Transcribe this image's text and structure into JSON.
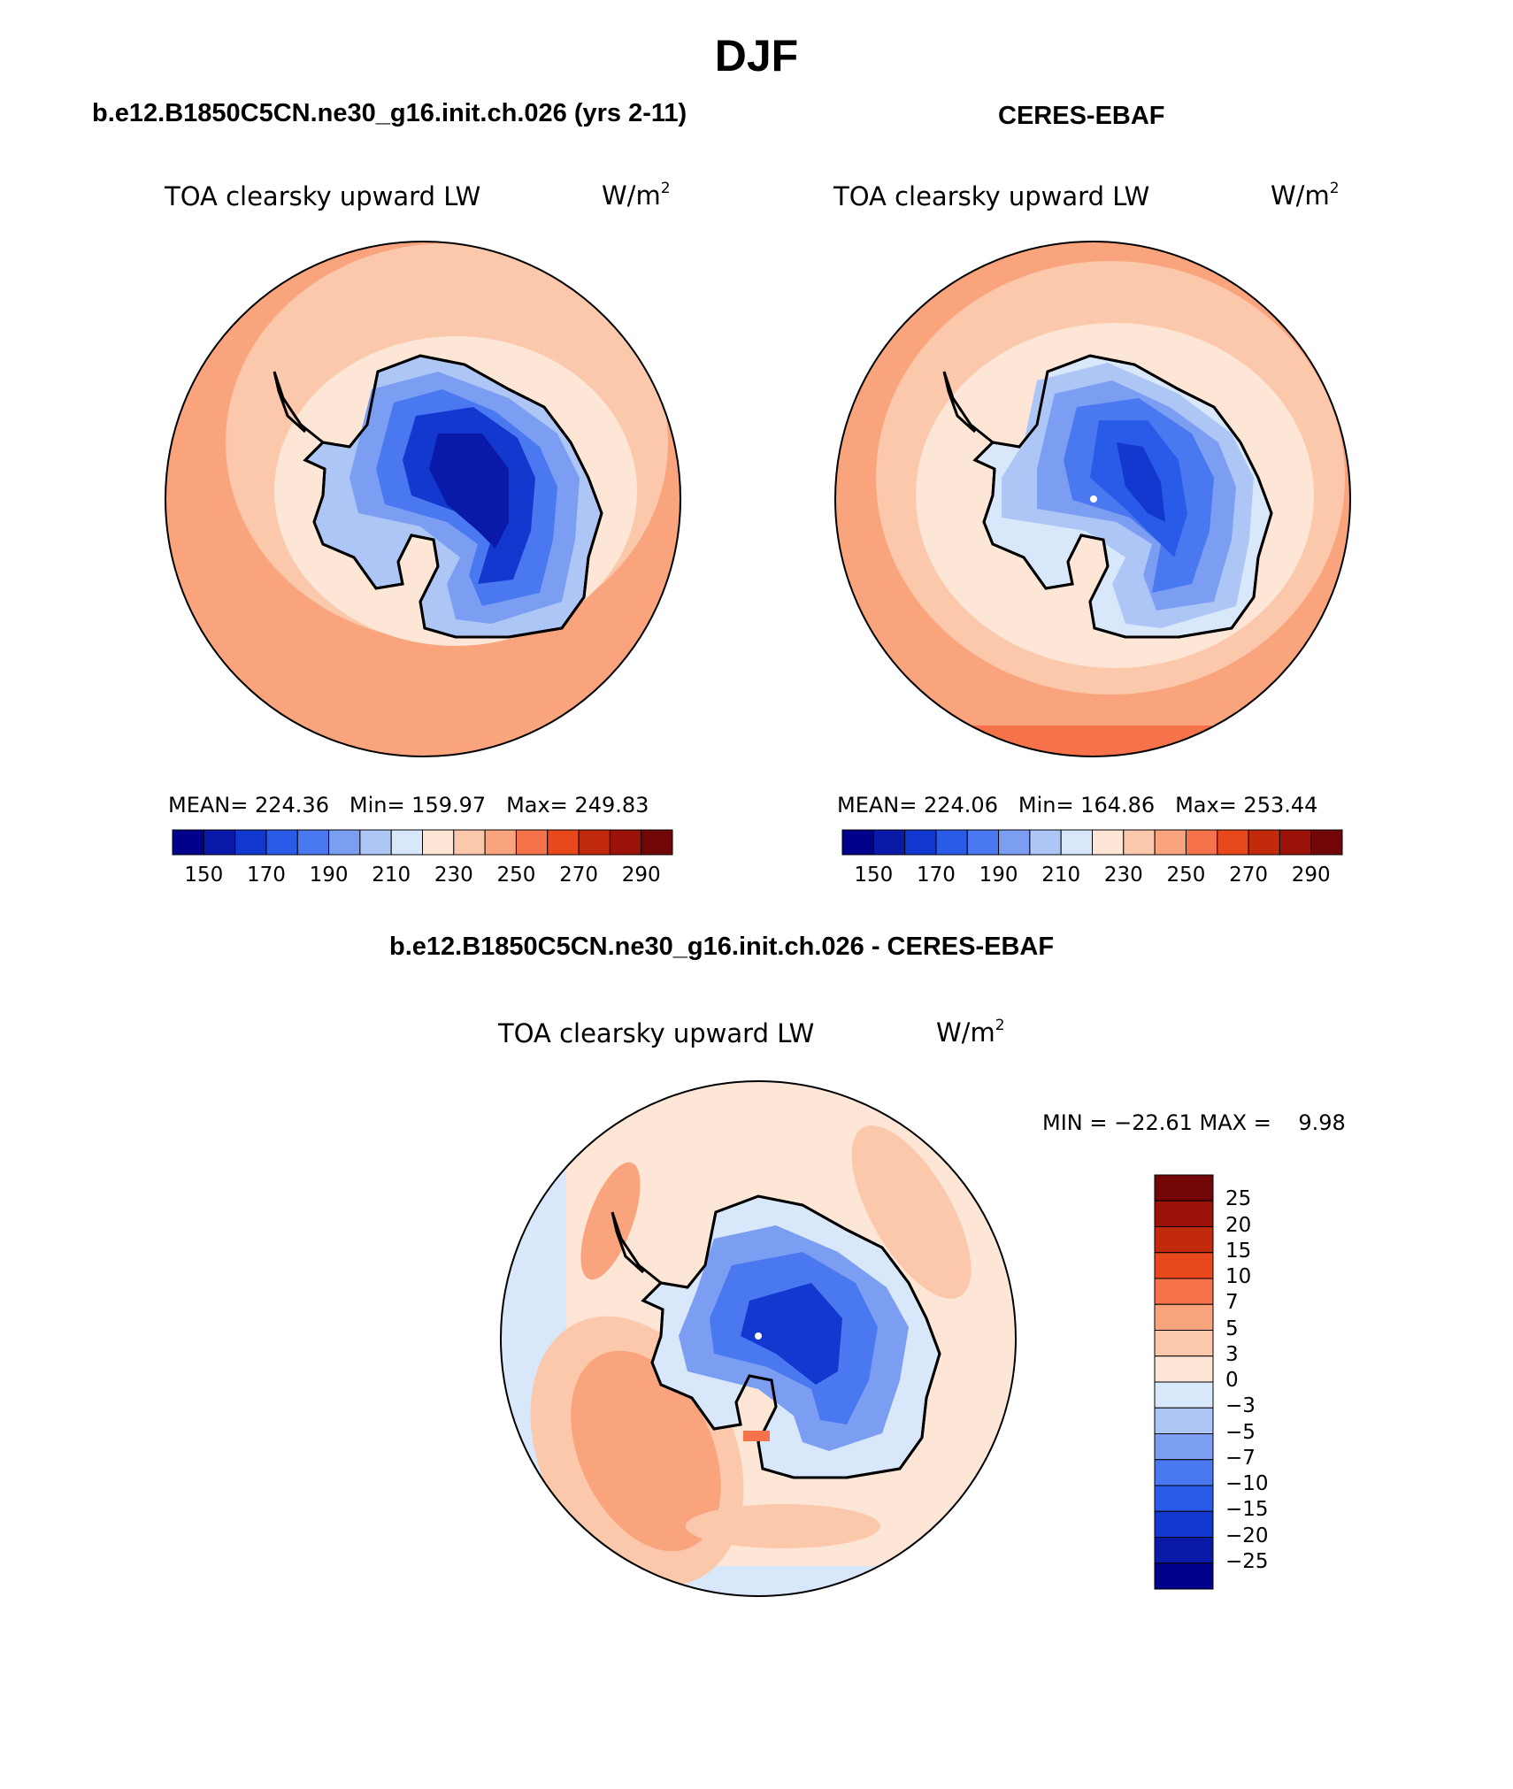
{
  "title": "DJF",
  "panels": [
    {
      "heading": "b.e12.B1850C5CN.ne30_g16.init.ch.026 (yrs 2-11)",
      "variable": "TOA clearsky upward LW",
      "units": "W/m",
      "units_exp": "2",
      "stats": {
        "mean": "MEAN= 224.36",
        "min": "Min= 159.97",
        "max": "Max= 249.83"
      },
      "colorbar_ticks": [
        "150",
        "170",
        "190",
        "210",
        "230",
        "250",
        "270",
        "290"
      ]
    },
    {
      "heading": "CERES-EBAF",
      "variable": "TOA clearsky upward LW",
      "units": "W/m",
      "units_exp": "2",
      "stats": {
        "mean": "MEAN= 224.06",
        "min": "Min= 164.86",
        "max": "Max= 253.44"
      },
      "colorbar_ticks": [
        "150",
        "170",
        "190",
        "210",
        "230",
        "250",
        "270",
        "290"
      ]
    }
  ],
  "diff": {
    "heading": "b.e12.B1850C5CN.ne30_g16.init.ch.026 - CERES-EBAF",
    "variable": "TOA clearsky upward LW",
    "units": "W/m",
    "units_exp": "2",
    "minmax": "MIN = −22.61 MAX =    9.98",
    "colorbar_ticks": [
      "25",
      "20",
      "15",
      "10",
      "7",
      "5",
      "3",
      "0",
      "−3",
      "−5",
      "−7",
      "−10",
      "−15",
      "−20",
      "−25"
    ]
  },
  "colors": {
    "abs_levels": [
      "#00008b",
      "#0a1aa8",
      "#1238d0",
      "#2a5ae8",
      "#4a78f0",
      "#7c9ef2",
      "#aec6f6",
      "#d8e8fa",
      "#fde6d6",
      "#fcc8ac",
      "#f9a47c",
      "#f5724a",
      "#e8481c",
      "#c22a0c",
      "#9a1208",
      "#720606"
    ],
    "diff_levels_top_to_bottom": [
      "#720606",
      "#9a1208",
      "#c22a0c",
      "#e8481c",
      "#f5724a",
      "#f9a47c",
      "#fcc8ac",
      "#fde6d6",
      "#d8e8fa",
      "#aec6f6",
      "#7c9ef2",
      "#4a78f0",
      "#2a5ae8",
      "#1238d0",
      "#0a1aa8",
      "#00008b"
    ]
  }
}
